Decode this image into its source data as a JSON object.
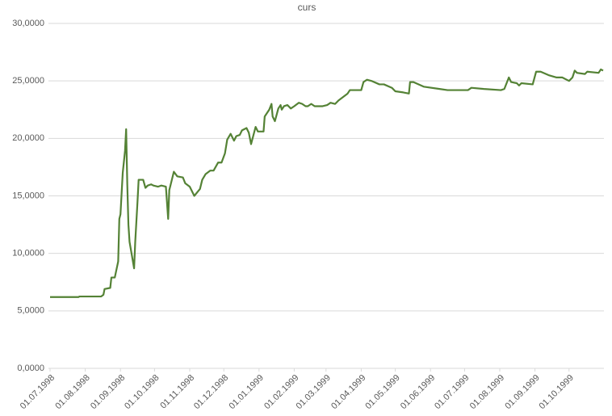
{
  "chart_data": {
    "type": "line",
    "title": "curs",
    "x": [
      "01.07.1998",
      "26.07.1998",
      "27.07.1998",
      "15.08.1998",
      "17.08.1998",
      "18.08.1998",
      "23.08.1998",
      "24.08.1998",
      "27.08.1998",
      "30.08.1998",
      "31.08.1998",
      "01.09.1998",
      "03.09.1998",
      "05.09.1998",
      "06.09.1998",
      "07.09.1998",
      "08.09.1998",
      "09.09.1998",
      "13.09.1998",
      "14.09.1998",
      "16.09.1998",
      "17.09.1998",
      "21.09.1998",
      "23.09.1998",
      "25.09.1998",
      "28.09.1998",
      "30.09.1998",
      "04.10.1998",
      "07.10.1998",
      "11.10.1998",
      "13.10.1998",
      "14.10.1998",
      "18.10.1998",
      "21.10.1998",
      "26.10.1998",
      "28.10.1998",
      "01.11.1998",
      "05.11.1998",
      "10.11.1998",
      "12.11.1998",
      "15.11.1998",
      "19.11.1998",
      "22.11.1998",
      "26.11.1998",
      "29.11.1998",
      "02.12.1998",
      "04.12.1998",
      "07.12.1998",
      "10.12.1998",
      "12.12.1998",
      "15.12.1998",
      "17.12.1998",
      "21.12.1998",
      "23.12.1998",
      "25.12.1998",
      "29.12.1998",
      "31.12.1998",
      "05.01.1999",
      "06.01.1999",
      "10.01.1999",
      "12.01.1999",
      "13.01.1999",
      "15.01.1999",
      "18.01.1999",
      "20.01.1999",
      "21.01.1999",
      "23.01.1999",
      "26.01.1999",
      "29.01.1999",
      "01.02.1999",
      "05.02.1999",
      "08.02.1999",
      "11.02.1999",
      "13.02.1999",
      "16.02.1999",
      "19.02.1999",
      "26.02.1999",
      "02.03.1999",
      "05.03.1999",
      "09.03.1999",
      "12.03.1999",
      "16.03.1999",
      "20.03.1999",
      "22.03.1999",
      "28.03.1999",
      "01.04.1999",
      "03.04.1999",
      "06.04.1999",
      "10.04.1999",
      "17.04.1999",
      "21.04.1999",
      "28.04.1999",
      "01.05.1999",
      "08.05.1999",
      "13.05.1999",
      "14.05.1999",
      "17.05.1999",
      "26.05.1999",
      "09.06.1999",
      "16.06.1999",
      "04.07.1999",
      "07.07.1999",
      "18.07.1999",
      "02.08.1999",
      "05.08.1999",
      "07.08.1999",
      "09.08.1999",
      "11.08.1999",
      "16.08.1999",
      "18.08.1999",
      "20.08.1999",
      "30.08.1999",
      "02.09.1999",
      "06.09.1999",
      "13.09.1999",
      "20.09.1999",
      "25.09.1999",
      "01.10.1999",
      "04.10.1999",
      "06.10.1999",
      "08.10.1999",
      "15.10.1999",
      "17.10.1999",
      "27.10.1999",
      "29.10.1999",
      "31.10.1999"
    ],
    "series": [
      {
        "name": "curs",
        "color": "#548235",
        "values": [
          6.2,
          6.2,
          6.25,
          6.25,
          6.4,
          6.9,
          7.0,
          7.9,
          7.9,
          9.3,
          13.0,
          13.4,
          17.0,
          18.9,
          20.8,
          16.0,
          12.5,
          11.0,
          8.7,
          11.0,
          14.5,
          16.4,
          16.4,
          15.7,
          15.9,
          16.0,
          15.9,
          15.8,
          15.9,
          15.8,
          13.0,
          15.5,
          17.1,
          16.7,
          16.6,
          16.1,
          15.8,
          15.0,
          15.6,
          16.4,
          16.9,
          17.2,
          17.2,
          17.9,
          17.9,
          18.7,
          19.9,
          20.4,
          19.8,
          20.2,
          20.3,
          20.7,
          20.9,
          20.5,
          19.5,
          21.0,
          20.6,
          20.6,
          21.9,
          22.5,
          23.0,
          21.9,
          21.5,
          22.6,
          22.9,
          22.5,
          22.8,
          22.9,
          22.6,
          22.8,
          23.1,
          23.0,
          22.8,
          22.8,
          23.0,
          22.8,
          22.8,
          22.9,
          23.1,
          23.0,
          23.3,
          23.6,
          23.9,
          24.2,
          24.2,
          24.2,
          24.9,
          25.1,
          25.0,
          24.7,
          24.7,
          24.4,
          24.1,
          24.0,
          23.9,
          24.9,
          24.9,
          24.5,
          24.3,
          24.2,
          24.2,
          24.4,
          24.3,
          24.2,
          24.3,
          24.8,
          25.3,
          24.9,
          24.8,
          24.6,
          24.8,
          24.7,
          25.8,
          25.8,
          25.5,
          25.3,
          25.3,
          25.0,
          25.3,
          25.9,
          25.7,
          25.6,
          25.8,
          25.7,
          26.0,
          25.9
        ]
      }
    ],
    "xlim": [
      "01.07.1998",
      "31.10.1999"
    ],
    "xticks": [
      "01.07.1998",
      "01.08.1998",
      "01.09.1998",
      "01.10.1998",
      "01.11.1998",
      "01.12.1998",
      "01.01.1999",
      "01.02.1999",
      "01.03.1999",
      "01.04.1999",
      "01.05.1999",
      "01.06.1999",
      "01.07.1999",
      "01.08.1999",
      "01.09.1999",
      "01.10.1999"
    ],
    "ylim": [
      0,
      30
    ],
    "yticks": [
      {
        "value": 0,
        "label": "0,0000"
      },
      {
        "value": 5,
        "label": "5,0000"
      },
      {
        "value": 10,
        "label": "10,0000"
      },
      {
        "value": 15,
        "label": "15,0000"
      },
      {
        "value": 20,
        "label": "20,0000"
      },
      {
        "value": 25,
        "label": "25,0000"
      },
      {
        "value": 30,
        "label": "30,0000"
      }
    ],
    "grid": true
  }
}
